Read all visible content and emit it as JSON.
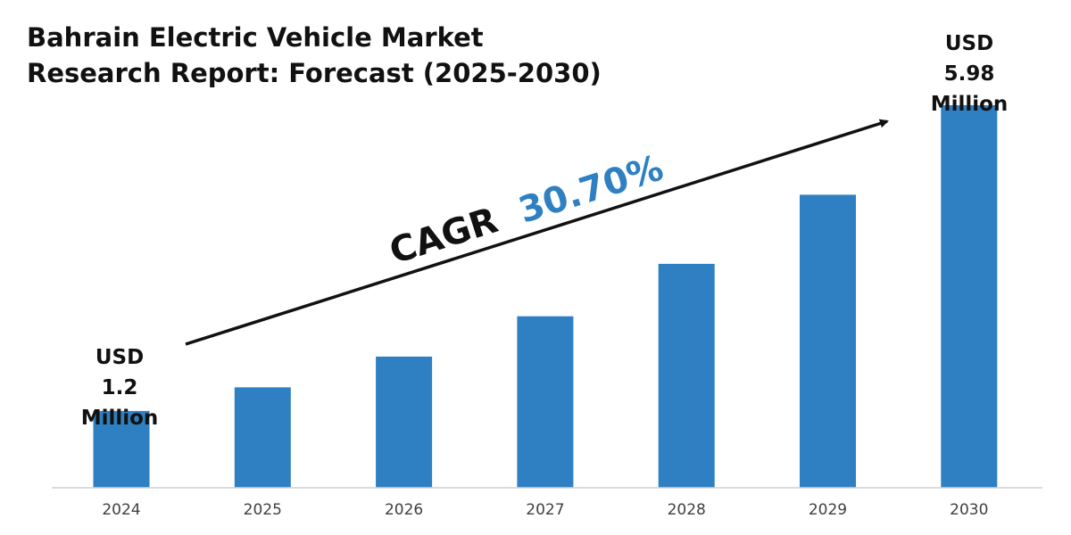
{
  "chart_data": {
    "type": "bar",
    "title_lines": [
      "Bahrain Electric Vehicle Market",
      "Research Report: Forecast (2025-2030)"
    ],
    "categories": [
      "2024",
      "2025",
      "2026",
      "2027",
      "2028",
      "2029",
      "2030"
    ],
    "values": [
      1.2,
      1.57,
      2.05,
      2.68,
      3.5,
      4.58,
      5.98
    ],
    "ylim": [
      0,
      6.9
    ],
    "xlabel": "",
    "ylabel": "",
    "grid": false,
    "legend": "none",
    "bar_color": "#2e80c2",
    "text_color": "#111111",
    "accent_color": "#2e80c2",
    "start_label": [
      "USD",
      "1.2",
      "Million"
    ],
    "end_label": [
      "USD",
      "5.98",
      "Million"
    ],
    "cagr_prefix": "CAGR",
    "cagr_value": "30.70%"
  }
}
